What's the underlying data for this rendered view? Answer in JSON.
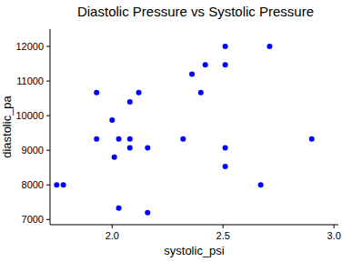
{
  "chart_data": {
    "type": "scatter",
    "title": "Diastolic Pressure vs Systolic Pressure",
    "x_label": "systolic_psi",
    "y_label": "diastolic_pa",
    "x": [
      1.75,
      1.78,
      1.93,
      1.93,
      2.0,
      2.01,
      2.03,
      2.03,
      2.08,
      2.08,
      2.08,
      2.12,
      2.16,
      2.16,
      2.32,
      2.36,
      2.4,
      2.42,
      2.51,
      2.51,
      2.51,
      2.51,
      2.67,
      2.71,
      2.9
    ],
    "values": [
      8000,
      8000,
      10670,
      9330,
      9870,
      8800,
      9330,
      7330,
      10400,
      9330,
      9070,
      10670,
      9070,
      7200,
      9330,
      11200,
      10670,
      11470,
      12000,
      11470,
      9070,
      8530,
      8000,
      12000,
      9330
    ],
    "color": "#0000ff",
    "marker": "circle",
    "xlim": [
      1.72,
      3.02
    ],
    "xticks": [
      {
        "value": 2.0,
        "label": "2.0"
      },
      2.5,
      {
        "value": 3.0,
        "label": "3.0"
      }
    ],
    "ylim": [
      6850,
      12500
    ],
    "yticks": [
      7000,
      8000,
      9000,
      10000,
      11000,
      12000
    ],
    "grid": false
  }
}
